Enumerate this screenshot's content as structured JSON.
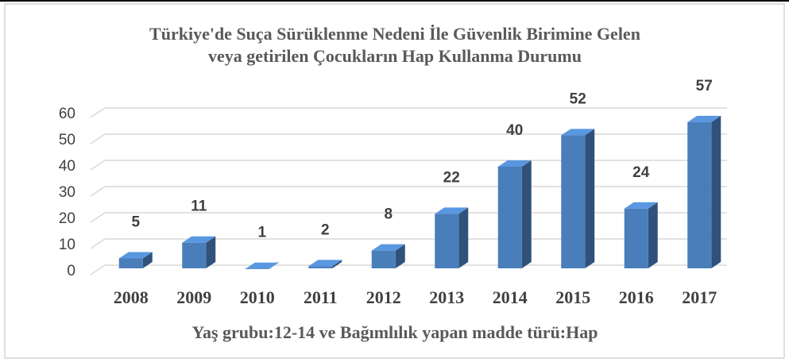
{
  "chart_data": {
    "type": "bar",
    "title": [
      "Türkiye'de Suça Sürüklenme Nedeni İle Güvenlik Birimine Gelen",
      "veya getirilen Çocukların Hap Kullanma Durumu"
    ],
    "x_label": "Yaş grubu:12-14 ve Bağımlılık yapan madde türü:Hap",
    "categories": [
      "2008",
      "2009",
      "2010",
      "2011",
      "2012",
      "2013",
      "2014",
      "2015",
      "2016",
      "2017"
    ],
    "values": [
      5,
      11,
      1,
      2,
      8,
      22,
      40,
      52,
      24,
      57
    ],
    "color": "#4a7ebb",
    "ylim": [
      0,
      60
    ],
    "yticks": [
      0,
      10,
      20,
      30,
      40,
      50,
      60
    ],
    "grid": true
  }
}
